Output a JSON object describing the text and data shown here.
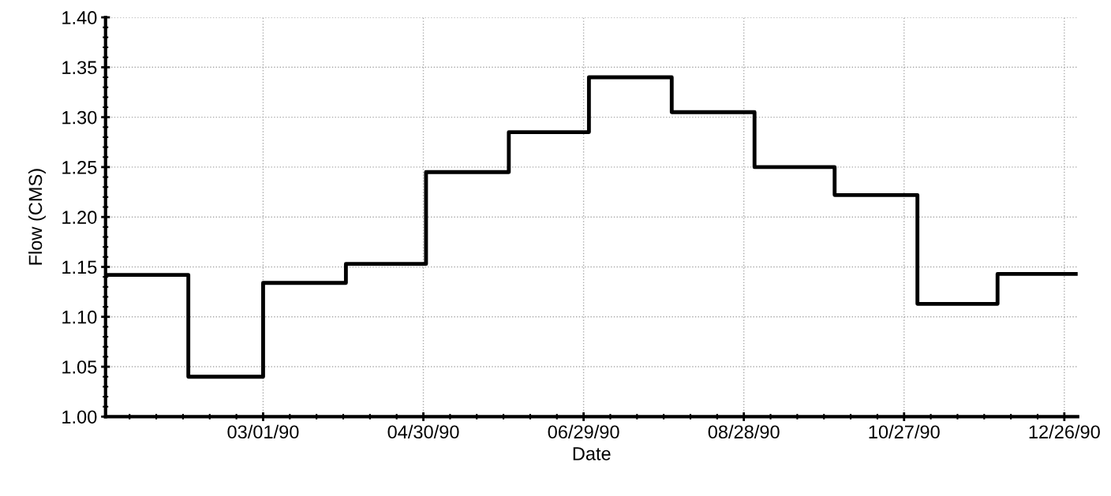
{
  "chart_data": {
    "type": "step",
    "xlabel": "Date",
    "ylabel": "Flow (CMS)",
    "x": [
      "1990-01-01",
      "1990-02-01",
      "1990-03-01",
      "1990-04-01",
      "1990-05-01",
      "1990-06-01",
      "1990-07-01",
      "1990-08-01",
      "1990-09-01",
      "1990-10-01",
      "1990-11-01",
      "1990-12-01",
      "1990-12-31"
    ],
    "series": [
      {
        "color": "#000000",
        "values": [
          1.142,
          1.04,
          1.134,
          1.153,
          1.245,
          1.285,
          1.34,
          1.305,
          1.25,
          1.222,
          1.113,
          1.143,
          1.143
        ]
      }
    ],
    "xlim": [
      "1990-01-01",
      "1990-12-31"
    ],
    "xticks": [
      {
        "value": "1990-03-01",
        "label": "03/01/90"
      },
      {
        "value": "1990-04-30",
        "label": "04/30/90"
      },
      {
        "value": "1990-06-29",
        "label": "06/29/90"
      },
      {
        "value": "1990-08-28",
        "label": "08/28/90"
      },
      {
        "value": "1990-10-27",
        "label": "10/27/90"
      },
      {
        "value": "1990-12-26",
        "label": "12/26/90"
      }
    ],
    "ylim": [
      1.0,
      1.4
    ],
    "yticks": [
      {
        "value": 1.0,
        "label": "1.00"
      },
      {
        "value": 1.05,
        "label": "1.05"
      },
      {
        "value": 1.1,
        "label": "1.10"
      },
      {
        "value": 1.15,
        "label": "1.15"
      },
      {
        "value": 1.2,
        "label": "1.20"
      },
      {
        "value": 1.25,
        "label": "1.25"
      },
      {
        "value": 1.3,
        "label": "1.30"
      },
      {
        "value": 1.35,
        "label": "1.35"
      },
      {
        "value": 1.4,
        "label": "1.40"
      }
    ],
    "grid": true,
    "line_style": "solid"
  }
}
